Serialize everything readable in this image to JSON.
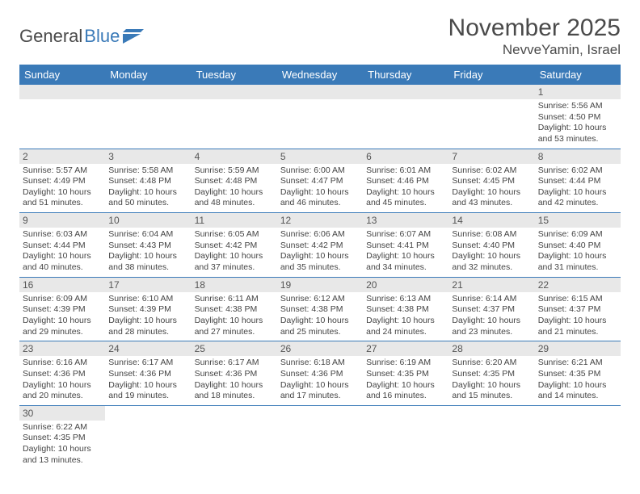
{
  "logo": {
    "part1": "General",
    "part2": "Blue"
  },
  "title": "November 2025",
  "location": "NevveYamin, Israel",
  "colors": {
    "header_bg": "#3a7ab8",
    "header_text": "#ffffff",
    "daynum_bg": "#e8e8e8",
    "cell_border": "#3a7ab8",
    "text": "#444444",
    "title_text": "#4a4a4a"
  },
  "weekdays": [
    "Sunday",
    "Monday",
    "Tuesday",
    "Wednesday",
    "Thursday",
    "Friday",
    "Saturday"
  ],
  "weeks": [
    [
      null,
      null,
      null,
      null,
      null,
      null,
      {
        "n": "1",
        "sunrise": "Sunrise: 5:56 AM",
        "sunset": "Sunset: 4:50 PM",
        "daylight": "Daylight: 10 hours and 53 minutes."
      }
    ],
    [
      {
        "n": "2",
        "sunrise": "Sunrise: 5:57 AM",
        "sunset": "Sunset: 4:49 PM",
        "daylight": "Daylight: 10 hours and 51 minutes."
      },
      {
        "n": "3",
        "sunrise": "Sunrise: 5:58 AM",
        "sunset": "Sunset: 4:48 PM",
        "daylight": "Daylight: 10 hours and 50 minutes."
      },
      {
        "n": "4",
        "sunrise": "Sunrise: 5:59 AM",
        "sunset": "Sunset: 4:48 PM",
        "daylight": "Daylight: 10 hours and 48 minutes."
      },
      {
        "n": "5",
        "sunrise": "Sunrise: 6:00 AM",
        "sunset": "Sunset: 4:47 PM",
        "daylight": "Daylight: 10 hours and 46 minutes."
      },
      {
        "n": "6",
        "sunrise": "Sunrise: 6:01 AM",
        "sunset": "Sunset: 4:46 PM",
        "daylight": "Daylight: 10 hours and 45 minutes."
      },
      {
        "n": "7",
        "sunrise": "Sunrise: 6:02 AM",
        "sunset": "Sunset: 4:45 PM",
        "daylight": "Daylight: 10 hours and 43 minutes."
      },
      {
        "n": "8",
        "sunrise": "Sunrise: 6:02 AM",
        "sunset": "Sunset: 4:44 PM",
        "daylight": "Daylight: 10 hours and 42 minutes."
      }
    ],
    [
      {
        "n": "9",
        "sunrise": "Sunrise: 6:03 AM",
        "sunset": "Sunset: 4:44 PM",
        "daylight": "Daylight: 10 hours and 40 minutes."
      },
      {
        "n": "10",
        "sunrise": "Sunrise: 6:04 AM",
        "sunset": "Sunset: 4:43 PM",
        "daylight": "Daylight: 10 hours and 38 minutes."
      },
      {
        "n": "11",
        "sunrise": "Sunrise: 6:05 AM",
        "sunset": "Sunset: 4:42 PM",
        "daylight": "Daylight: 10 hours and 37 minutes."
      },
      {
        "n": "12",
        "sunrise": "Sunrise: 6:06 AM",
        "sunset": "Sunset: 4:42 PM",
        "daylight": "Daylight: 10 hours and 35 minutes."
      },
      {
        "n": "13",
        "sunrise": "Sunrise: 6:07 AM",
        "sunset": "Sunset: 4:41 PM",
        "daylight": "Daylight: 10 hours and 34 minutes."
      },
      {
        "n": "14",
        "sunrise": "Sunrise: 6:08 AM",
        "sunset": "Sunset: 4:40 PM",
        "daylight": "Daylight: 10 hours and 32 minutes."
      },
      {
        "n": "15",
        "sunrise": "Sunrise: 6:09 AM",
        "sunset": "Sunset: 4:40 PM",
        "daylight": "Daylight: 10 hours and 31 minutes."
      }
    ],
    [
      {
        "n": "16",
        "sunrise": "Sunrise: 6:09 AM",
        "sunset": "Sunset: 4:39 PM",
        "daylight": "Daylight: 10 hours and 29 minutes."
      },
      {
        "n": "17",
        "sunrise": "Sunrise: 6:10 AM",
        "sunset": "Sunset: 4:39 PM",
        "daylight": "Daylight: 10 hours and 28 minutes."
      },
      {
        "n": "18",
        "sunrise": "Sunrise: 6:11 AM",
        "sunset": "Sunset: 4:38 PM",
        "daylight": "Daylight: 10 hours and 27 minutes."
      },
      {
        "n": "19",
        "sunrise": "Sunrise: 6:12 AM",
        "sunset": "Sunset: 4:38 PM",
        "daylight": "Daylight: 10 hours and 25 minutes."
      },
      {
        "n": "20",
        "sunrise": "Sunrise: 6:13 AM",
        "sunset": "Sunset: 4:38 PM",
        "daylight": "Daylight: 10 hours and 24 minutes."
      },
      {
        "n": "21",
        "sunrise": "Sunrise: 6:14 AM",
        "sunset": "Sunset: 4:37 PM",
        "daylight": "Daylight: 10 hours and 23 minutes."
      },
      {
        "n": "22",
        "sunrise": "Sunrise: 6:15 AM",
        "sunset": "Sunset: 4:37 PM",
        "daylight": "Daylight: 10 hours and 21 minutes."
      }
    ],
    [
      {
        "n": "23",
        "sunrise": "Sunrise: 6:16 AM",
        "sunset": "Sunset: 4:36 PM",
        "daylight": "Daylight: 10 hours and 20 minutes."
      },
      {
        "n": "24",
        "sunrise": "Sunrise: 6:17 AM",
        "sunset": "Sunset: 4:36 PM",
        "daylight": "Daylight: 10 hours and 19 minutes."
      },
      {
        "n": "25",
        "sunrise": "Sunrise: 6:17 AM",
        "sunset": "Sunset: 4:36 PM",
        "daylight": "Daylight: 10 hours and 18 minutes."
      },
      {
        "n": "26",
        "sunrise": "Sunrise: 6:18 AM",
        "sunset": "Sunset: 4:36 PM",
        "daylight": "Daylight: 10 hours and 17 minutes."
      },
      {
        "n": "27",
        "sunrise": "Sunrise: 6:19 AM",
        "sunset": "Sunset: 4:35 PM",
        "daylight": "Daylight: 10 hours and 16 minutes."
      },
      {
        "n": "28",
        "sunrise": "Sunrise: 6:20 AM",
        "sunset": "Sunset: 4:35 PM",
        "daylight": "Daylight: 10 hours and 15 minutes."
      },
      {
        "n": "29",
        "sunrise": "Sunrise: 6:21 AM",
        "sunset": "Sunset: 4:35 PM",
        "daylight": "Daylight: 10 hours and 14 minutes."
      }
    ],
    [
      {
        "n": "30",
        "sunrise": "Sunrise: 6:22 AM",
        "sunset": "Sunset: 4:35 PM",
        "daylight": "Daylight: 10 hours and 13 minutes."
      },
      null,
      null,
      null,
      null,
      null,
      null
    ]
  ]
}
